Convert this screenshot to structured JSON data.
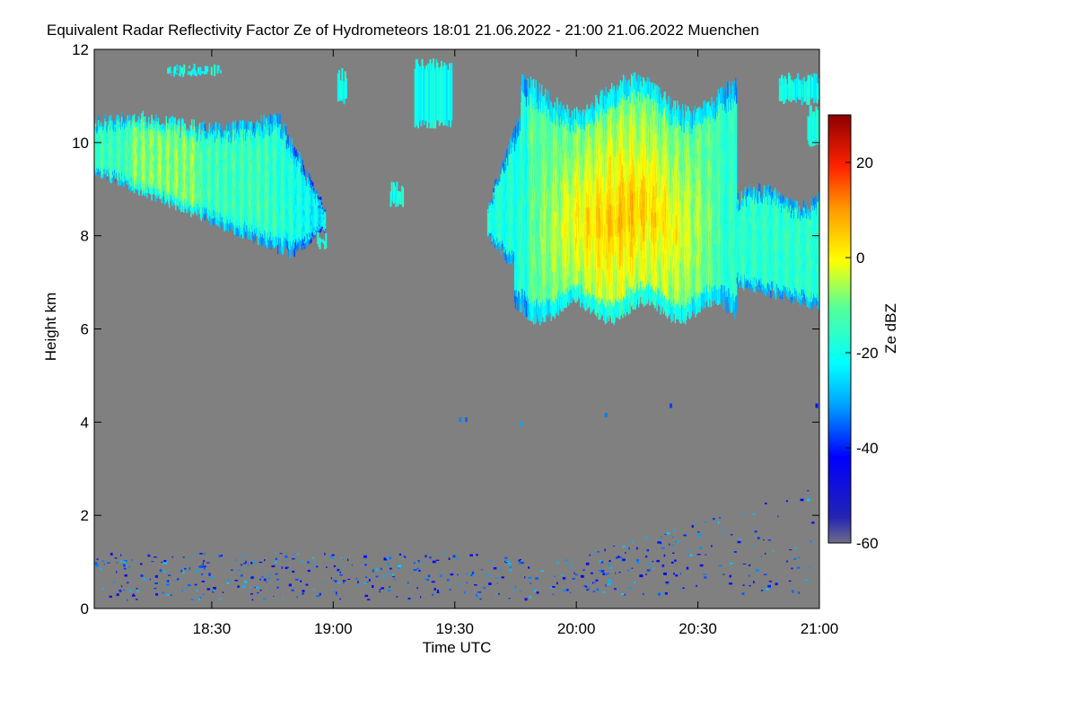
{
  "title": "Equivalent Radar Reflectivity Factor Ze of Hydrometeors   18:01 21.06.2022 - 21:00 21.06.2022 Muenchen",
  "chart_data": {
    "type": "heatmap",
    "title": "Equivalent Radar Reflectivity Factor Ze of Hydrometeors   18:01 21.06.2022 - 21:00 21.06.2022 Muenchen",
    "xlabel": "Time UTC",
    "ylabel": "Height km",
    "x_range": [
      "18:01",
      "21:00"
    ],
    "xlim_minutes_utc": [
      1081,
      1260
    ],
    "x_ticks": [
      {
        "label": "18:30",
        "minute": 1110
      },
      {
        "label": "19:00",
        "minute": 1140
      },
      {
        "label": "19:30",
        "minute": 1170
      },
      {
        "label": "20:00",
        "minute": 1200
      },
      {
        "label": "20:30",
        "minute": 1230
      },
      {
        "label": "21:00",
        "minute": 1260
      }
    ],
    "ylim": [
      0,
      12
    ],
    "y_ticks": [
      0,
      2,
      4,
      6,
      8,
      10,
      12
    ],
    "colorbar": {
      "label": "Ze dBZ",
      "range": [
        -60,
        30
      ],
      "ticks": [
        20,
        0,
        -20,
        -40,
        -60
      ],
      "colormap": [
        "#6f6f8a",
        "#2424b4",
        "#0000ff",
        "#00aaff",
        "#00ffff",
        "#55ff99",
        "#ffff00",
        "#ff9900",
        "#ff2200",
        "#8b0000"
      ]
    },
    "background_color": "#808080",
    "features": [
      {
        "name": "upper cloud layer west",
        "time_start": "18:01",
        "time_end": "18:58",
        "height_km": [
          7.2,
          10.6
        ],
        "ze_dbz": [
          -40,
          -5
        ]
      },
      {
        "name": "convective cloud",
        "time_start": "19:38",
        "time_end": "21:00",
        "height_km": [
          6.1,
          11.7
        ],
        "ze_dbz": [
          -40,
          8
        ]
      },
      {
        "name": "low-level clutter",
        "time_start": "18:01",
        "time_end": "21:00",
        "height_km": [
          0.2,
          2.1
        ],
        "ze_dbz": [
          -50,
          -10
        ]
      }
    ]
  }
}
